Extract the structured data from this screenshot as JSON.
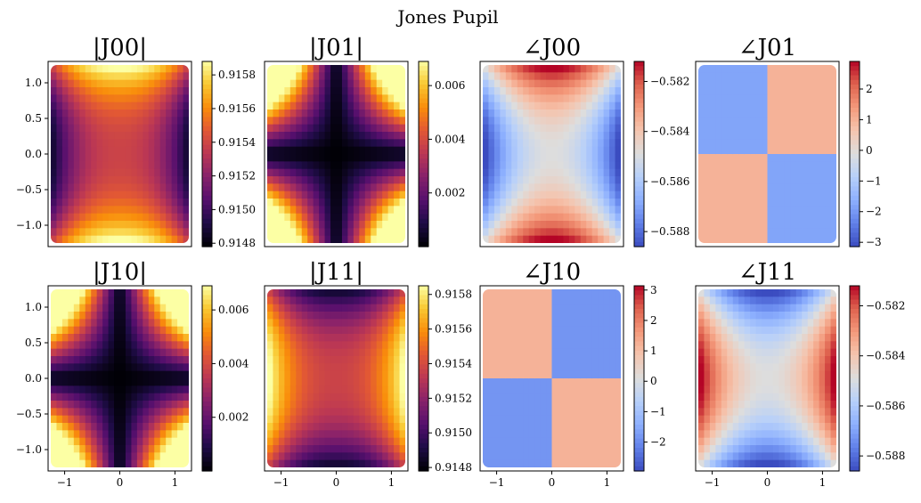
{
  "figure_title": "Jones Pupil",
  "chart_data": [
    {
      "type": "heatmap",
      "title": "|J00|",
      "pattern": "A",
      "colormap": "inferno",
      "xlim": [
        -1.3,
        1.3
      ],
      "ylim": [
        -1.3,
        1.3
      ],
      "xticks": [],
      "yticks": [
        -1.0,
        -0.5,
        0.0,
        0.5,
        1.0
      ],
      "ytick_labels": [
        "−1.0",
        "−0.5",
        "0.0",
        "0.5",
        "1.0"
      ],
      "clim": [
        0.91478,
        0.91588
      ],
      "colorbar_ticks": [
        0.9148,
        0.915,
        0.9152,
        0.9154,
        0.9156,
        0.9158
      ],
      "colorbar_labels": [
        "0.9148",
        "0.9150",
        "0.9152",
        "0.9154",
        "0.9156",
        "0.9158"
      ]
    },
    {
      "type": "heatmap",
      "title": "|J01|",
      "pattern": "B",
      "colormap": "inferno",
      "xlim": [
        -1.3,
        1.3
      ],
      "ylim": [
        -1.3,
        1.3
      ],
      "xticks": [],
      "yticks": [],
      "clim": [
        0.0,
        0.0069
      ],
      "colorbar_ticks": [
        0.002,
        0.004,
        0.006
      ],
      "colorbar_labels": [
        "0.002",
        "0.004",
        "0.006"
      ]
    },
    {
      "type": "heatmap",
      "title": "∠J00",
      "pattern": "C",
      "colormap": "coolwarm",
      "xlim": [
        -1.3,
        1.3
      ],
      "ylim": [
        -1.3,
        1.3
      ],
      "xticks": [],
      "yticks": [],
      "clim": [
        -0.5886,
        -0.5812
      ],
      "colorbar_ticks": [
        -0.588,
        -0.586,
        -0.584,
        -0.582
      ],
      "colorbar_labels": [
        "−0.588",
        "−0.586",
        "−0.584",
        "−0.582"
      ]
    },
    {
      "type": "heatmap",
      "title": "∠J01",
      "pattern": "D",
      "colormap": "coolwarm",
      "xlim": [
        -1.3,
        1.3
      ],
      "ylim": [
        -1.3,
        1.3
      ],
      "xticks": [],
      "yticks": [],
      "clim": [
        -3.14,
        2.9
      ],
      "colorbar_ticks": [
        -3,
        -2,
        -1,
        0,
        1,
        2
      ],
      "colorbar_labels": [
        "−3",
        "−2",
        "−1",
        "0",
        "1",
        "2"
      ]
    },
    {
      "type": "heatmap",
      "title": "|J10|",
      "pattern": "B",
      "colormap": "inferno",
      "xlim": [
        -1.3,
        1.3
      ],
      "ylim": [
        -1.3,
        1.3
      ],
      "xticks": [
        -1,
        0,
        1
      ],
      "xtick_labels": [
        "−1",
        "0",
        "1"
      ],
      "yticks": [
        -1.0,
        -0.5,
        0.0,
        0.5,
        1.0
      ],
      "ytick_labels": [
        "−1.0",
        "−0.5",
        "0.0",
        "0.5",
        "1.0"
      ],
      "clim": [
        0.0,
        0.0069
      ],
      "colorbar_ticks": [
        0.002,
        0.004,
        0.006
      ],
      "colorbar_labels": [
        "0.002",
        "0.004",
        "0.006"
      ]
    },
    {
      "type": "heatmap",
      "title": "|J11|",
      "pattern": "E",
      "colormap": "inferno",
      "xlim": [
        -1.3,
        1.3
      ],
      "ylim": [
        -1.3,
        1.3
      ],
      "xticks": [
        -1,
        0,
        1
      ],
      "xtick_labels": [
        "−1",
        "0",
        "1"
      ],
      "yticks": [],
      "clim": [
        0.91478,
        0.91585
      ],
      "colorbar_ticks": [
        0.9148,
        0.915,
        0.9152,
        0.9154,
        0.9156,
        0.9158
      ],
      "colorbar_labels": [
        "0.9148",
        "0.9150",
        "0.9152",
        "0.9154",
        "0.9156",
        "0.9158"
      ]
    },
    {
      "type": "heatmap",
      "title": "∠J10",
      "pattern": "F",
      "colormap": "coolwarm",
      "xlim": [
        -1.3,
        1.3
      ],
      "ylim": [
        -1.3,
        1.3
      ],
      "xticks": [
        -1,
        0,
        1
      ],
      "xtick_labels": [
        "−1",
        "0",
        "1"
      ],
      "yticks": [],
      "clim": [
        -2.95,
        3.14
      ],
      "colorbar_ticks": [
        -2,
        -1,
        0,
        1,
        2,
        3
      ],
      "colorbar_labels": [
        "−2",
        "−1",
        "0",
        "1",
        "2",
        "3"
      ]
    },
    {
      "type": "heatmap",
      "title": "∠J11",
      "pattern": "G",
      "colormap": "coolwarm",
      "xlim": [
        -1.3,
        1.3
      ],
      "ylim": [
        -1.3,
        1.3
      ],
      "xticks": [
        -1,
        0,
        1
      ],
      "xtick_labels": [
        "−1",
        "0",
        "1"
      ],
      "yticks": [],
      "clim": [
        -0.5886,
        -0.5812
      ],
      "colorbar_ticks": [
        -0.588,
        -0.586,
        -0.584,
        -0.582
      ],
      "colorbar_labels": [
        "−0.588",
        "−0.586",
        "−0.584",
        "−0.582"
      ]
    }
  ]
}
